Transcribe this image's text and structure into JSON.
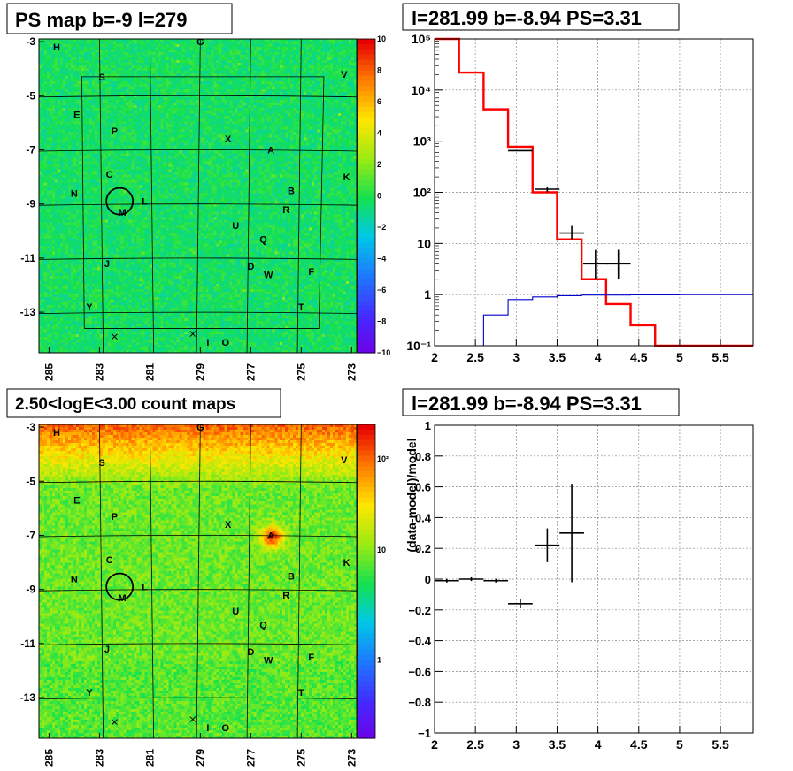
{
  "panels": {
    "ps_map": {
      "title": "PS map b=-9 l=279",
      "colorbar_ticks": [
        "10",
        "8",
        "6",
        "4",
        "2",
        "0",
        "−2",
        "−4",
        "−6",
        "−8",
        "−10"
      ],
      "colorbar_min": -10,
      "colorbar_max": 10
    },
    "count_map": {
      "title": "2.50<logE<3.00 count maps",
      "colorbar_ticks": [
        "10²",
        "10",
        "1"
      ]
    },
    "spectrum": {
      "title": "l=281.99 b=-8.94 PS=3.31"
    },
    "residual": {
      "title": "l=281.99 b=-8.94 PS=3.31",
      "ylabel": "(data-model)/model"
    }
  },
  "map_axes": {
    "x_ticks": [
      "285",
      "283",
      "281",
      "279",
      "277",
      "275",
      "273"
    ],
    "y_ticks": [
      "-3",
      "-5",
      "-7",
      "-9",
      "-11",
      "-13"
    ],
    "sources": [
      {
        "label": "H",
        "l": 284.7,
        "b": -3.2
      },
      {
        "label": "G",
        "l": 279.0,
        "b": -3.0
      },
      {
        "label": "S",
        "l": 282.9,
        "b": -4.3
      },
      {
        "label": "V",
        "l": 273.3,
        "b": -4.2
      },
      {
        "label": "E",
        "l": 283.9,
        "b": -5.7
      },
      {
        "label": "P",
        "l": 282.4,
        "b": -6.3
      },
      {
        "label": "X",
        "l": 277.9,
        "b": -6.6
      },
      {
        "label": "A",
        "l": 276.2,
        "b": -7.0
      },
      {
        "label": "C",
        "l": 282.6,
        "b": -7.9
      },
      {
        "label": "K",
        "l": 273.2,
        "b": -8.0
      },
      {
        "label": "N",
        "l": 284.0,
        "b": -8.6
      },
      {
        "label": "B",
        "l": 275.4,
        "b": -8.5
      },
      {
        "label": "L",
        "l": 281.2,
        "b": -8.9
      },
      {
        "label": "R",
        "l": 275.6,
        "b": -9.2
      },
      {
        "label": "M",
        "l": 282.1,
        "b": -9.3
      },
      {
        "label": "U",
        "l": 277.6,
        "b": -9.8
      },
      {
        "label": "Q",
        "l": 276.5,
        "b": -10.3
      },
      {
        "label": "J",
        "l": 282.7,
        "b": -11.2
      },
      {
        "label": "D",
        "l": 277.0,
        "b": -11.3
      },
      {
        "label": "W",
        "l": 276.3,
        "b": -11.6
      },
      {
        "label": "F",
        "l": 274.6,
        "b": -11.5
      },
      {
        "label": "Y",
        "l": 283.4,
        "b": -12.8
      },
      {
        "label": "T",
        "l": 275.0,
        "b": -12.8
      },
      {
        "label": "I",
        "l": 278.7,
        "b": -14.1
      },
      {
        "label": "O",
        "l": 278.0,
        "b": -14.1
      }
    ],
    "crosses": [
      {
        "l": 282.4,
        "b": -13.9
      },
      {
        "l": 279.3,
        "b": -13.8
      }
    ],
    "circle": {
      "l": 282.2,
      "b": -8.9
    }
  },
  "chart_data": [
    {
      "type": "heatmap",
      "title": "PS map b=-9 l=279",
      "x_ticks": [
        285,
        283,
        281,
        279,
        277,
        275,
        273
      ],
      "y_ticks": [
        -3,
        -5,
        -7,
        -9,
        -11,
        -13
      ],
      "xlim": [
        285.4,
        272.8
      ],
      "ylim": [
        -14.5,
        -2.9
      ],
      "z_range": [
        -10,
        10
      ]
    },
    {
      "type": "line",
      "title": "l=281.99 b=-8.94 PS=3.31",
      "x_ticks": [
        2,
        2.5,
        3,
        3.5,
        4,
        4.5,
        5,
        5.5
      ],
      "xlim": [
        2,
        5.9
      ],
      "y_log": true,
      "ylim": [
        0.1,
        100000
      ],
      "y_ticks": [
        "10⁻¹",
        "1",
        "10",
        "10²",
        "10³",
        "10⁴",
        "10⁵"
      ],
      "grid": true,
      "series": [
        {
          "color": "#ff0000",
          "step_edges": [
            2,
            2.3,
            2.6,
            2.9,
            3.2,
            3.5,
            3.8,
            4.1,
            4.4,
            4.7,
            5.0,
            5.9
          ],
          "values": [
            100000,
            22000,
            4200,
            780,
            100,
            12,
            2.0,
            0.65,
            0.25,
            0.1,
            0.1
          ]
        },
        {
          "color": "#0000cc",
          "step_edges": [
            2,
            2.3,
            2.6,
            2.9,
            3.2,
            3.5,
            3.8,
            4.1,
            4.4,
            4.7,
            5.0,
            5.9
          ],
          "values": [
            0.1,
            0.1,
            0.4,
            0.8,
            0.9,
            0.95,
            0.98,
            0.98,
            0.99,
            0.99,
            1.0
          ]
        },
        {
          "color": "#000000",
          "points": [
            {
              "x": 3.05,
              "y": 650,
              "xerr": 0.15
            },
            {
              "x": 3.38,
              "y": 115,
              "xerr": 0.15,
              "ylo": 100,
              "yhi": 130
            },
            {
              "x": 3.68,
              "y": 16,
              "xerr": 0.15,
              "ylo": 12,
              "yhi": 22
            },
            {
              "x": 3.97,
              "y": 4,
              "xerr": 0.15,
              "ylo": 2.0,
              "yhi": 7.5
            },
            {
              "x": 4.25,
              "y": 4,
              "xerr": 0.15,
              "ylo": 2.0,
              "yhi": 7.5
            }
          ]
        }
      ]
    },
    {
      "type": "heatmap",
      "title": "2.50<logE<3.00 count maps",
      "x_ticks": [
        285,
        283,
        281,
        279,
        277,
        275,
        273
      ],
      "y_ticks": [
        -3,
        -5,
        -7,
        -9,
        -11,
        -13
      ],
      "xlim": [
        285.4,
        272.8
      ],
      "ylim": [
        -14.5,
        -2.9
      ],
      "z_log": true,
      "z_range": [
        0.3,
        300
      ]
    },
    {
      "type": "scatter",
      "title": "l=281.99 b=-8.94 PS=3.31",
      "ylabel": "(data-model)/model",
      "x_ticks": [
        2,
        2.5,
        3,
        3.5,
        4,
        4.5,
        5,
        5.5
      ],
      "y_ticks": [
        -1,
        -0.8,
        -0.6,
        -0.4,
        -0.2,
        0,
        0.2,
        0.4,
        0.6,
        0.8,
        1
      ],
      "xlim": [
        2,
        5.9
      ],
      "ylim": [
        -1,
        1
      ],
      "grid": true,
      "points": [
        {
          "x": 2.15,
          "y": -0.01,
          "xerr": 0.15
        },
        {
          "x": 2.45,
          "y": 0.0,
          "xerr": 0.15
        },
        {
          "x": 2.75,
          "y": -0.01,
          "xerr": 0.15
        },
        {
          "x": 3.05,
          "y": -0.16,
          "xerr": 0.15,
          "yerr": 0.03
        },
        {
          "x": 3.38,
          "y": 0.22,
          "xerr": 0.15,
          "yerr": 0.11
        },
        {
          "x": 3.68,
          "y": 0.3,
          "xerr": 0.15,
          "yerr": 0.32
        }
      ]
    }
  ]
}
